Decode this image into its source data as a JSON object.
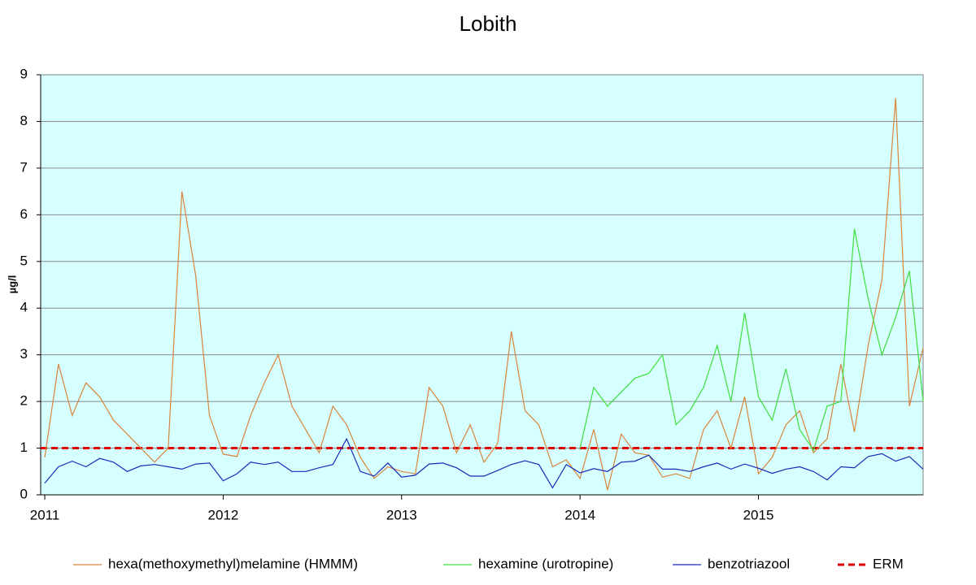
{
  "chart_data": {
    "type": "line",
    "title": "Lobith",
    "y_label": "µg/l",
    "x": [
      2011,
      2011.077,
      2011.154,
      2011.231,
      2011.308,
      2011.385,
      2011.462,
      2011.538,
      2011.615,
      2011.692,
      2011.769,
      2011.846,
      2011.923,
      2012,
      2012.077,
      2012.154,
      2012.231,
      2012.308,
      2012.385,
      2012.462,
      2012.538,
      2012.615,
      2012.692,
      2012.769,
      2012.846,
      2012.923,
      2013,
      2013.077,
      2013.154,
      2013.231,
      2013.308,
      2013.385,
      2013.462,
      2013.538,
      2013.615,
      2013.692,
      2013.769,
      2013.846,
      2013.923,
      2014,
      2014.077,
      2014.154,
      2014.231,
      2014.308,
      2014.385,
      2014.462,
      2014.538,
      2014.615,
      2014.692,
      2014.769,
      2014.846,
      2014.923,
      2015,
      2015.077,
      2015.154,
      2015.231,
      2015.308,
      2015.385,
      2015.462,
      2015.538,
      2015.615,
      2015.692,
      2015.769,
      2015.846,
      2015.923
    ],
    "series": [
      {
        "name": "hexa(methoxymethyl)melamine (HMMM)",
        "color": "#d8843a",
        "values": [
          0.8,
          2.8,
          1.7,
          2.4,
          2.1,
          1.6,
          1.3,
          1.0,
          0.7,
          1.0,
          6.5,
          4.7,
          1.7,
          0.87,
          0.82,
          1.7,
          2.4,
          3.0,
          1.9,
          1.4,
          0.9,
          1.9,
          1.5,
          0.8,
          0.35,
          0.6,
          0.5,
          0.45,
          2.3,
          1.9,
          0.9,
          1.5,
          0.7,
          1.1,
          3.5,
          1.8,
          1.5,
          0.6,
          0.75,
          0.35,
          1.4,
          0.1,
          1.3,
          0.9,
          0.85,
          0.38,
          0.45,
          0.35,
          1.4,
          1.8,
          1.0,
          2.1,
          0.45,
          0.8,
          1.5,
          1.8,
          0.9,
          1.2,
          2.8,
          1.35,
          3.2,
          4.6,
          8.5,
          1.9,
          3.15
        ]
      },
      {
        "name": "hexamine (urotropine)",
        "color": "#3ee03e",
        "values": [
          null,
          null,
          null,
          null,
          null,
          null,
          null,
          null,
          null,
          null,
          null,
          null,
          null,
          null,
          null,
          null,
          null,
          null,
          null,
          null,
          null,
          null,
          null,
          null,
          null,
          null,
          null,
          null,
          null,
          null,
          null,
          null,
          null,
          null,
          null,
          null,
          null,
          null,
          null,
          1.0,
          2.3,
          1.9,
          2.2,
          2.5,
          2.6,
          3.0,
          1.5,
          1.8,
          2.3,
          3.2,
          2.0,
          3.9,
          2.1,
          1.6,
          2.7,
          1.4,
          0.95,
          1.9,
          2.0,
          5.7,
          4.2,
          3.0,
          3.8,
          4.8,
          2.0
        ]
      },
      {
        "name": "benzotriazool",
        "color": "#1a2ab8",
        "values": [
          0.25,
          0.6,
          0.72,
          0.6,
          0.78,
          0.7,
          0.5,
          0.62,
          0.65,
          0.6,
          0.55,
          0.66,
          0.68,
          0.3,
          0.45,
          0.7,
          0.65,
          0.7,
          0.5,
          0.5,
          0.58,
          0.65,
          1.2,
          0.5,
          0.4,
          0.68,
          0.38,
          0.42,
          0.66,
          0.68,
          0.58,
          0.4,
          0.4,
          0.52,
          0.65,
          0.73,
          0.65,
          0.15,
          0.65,
          0.47,
          0.56,
          0.5,
          0.7,
          0.72,
          0.85,
          0.55,
          0.55,
          0.5,
          0.6,
          0.68,
          0.55,
          0.66,
          0.57,
          0.46,
          0.55,
          0.6,
          0.5,
          0.32,
          0.6,
          0.58,
          0.82,
          0.88,
          0.72,
          0.82,
          0.55
        ]
      }
    ],
    "reference_lines": [
      {
        "name": "ERM",
        "value": 1,
        "color": "#e00000",
        "dashed": true
      }
    ],
    "xlim": [
      2010.977,
      2015.923
    ],
    "xticks": [
      2011,
      2012,
      2013,
      2014,
      2015
    ],
    "ylim": [
      0,
      9
    ],
    "yticks": [
      0,
      1,
      2,
      3,
      4,
      5,
      6,
      7,
      8,
      9
    ],
    "grid": true,
    "plot_background": "#d6ffff",
    "legend_position": "bottom"
  }
}
